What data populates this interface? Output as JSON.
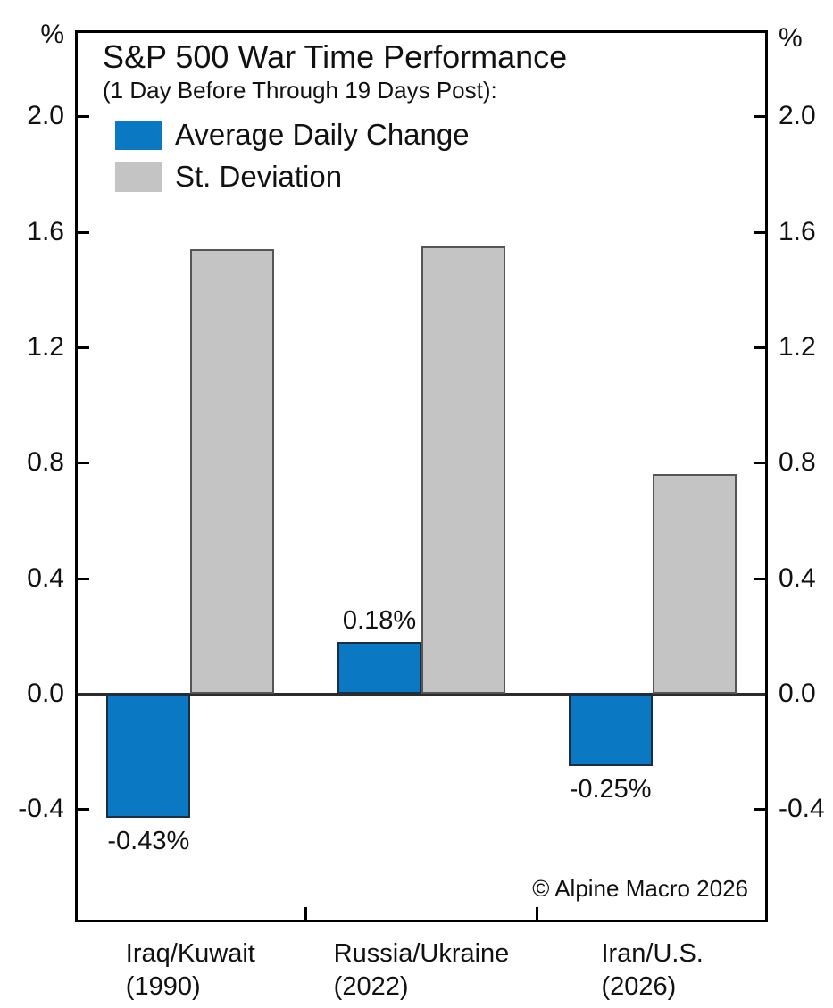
{
  "chart_data": {
    "type": "bar",
    "title": "S&P 500 War Time Performance",
    "subtitle": "(1 Day Before Through 19 Days Post):",
    "unit": "%",
    "categories": [
      "Iraq/Kuwait (1990)",
      "Russia/Ukraine (2022)",
      "Iran/U.S. (2026)"
    ],
    "category_lines": [
      [
        "Iraq/Kuwait",
        "(1990)"
      ],
      [
        "Russia/Ukraine",
        "(2022)"
      ],
      [
        "Iran/U.S.",
        "(2026)"
      ]
    ],
    "series": [
      {
        "name": "Average Daily Change",
        "color": "#0b78c4",
        "values": [
          -0.43,
          0.18,
          -0.25
        ],
        "value_labels": [
          "-0.43%",
          "0.18%",
          "-0.25%"
        ]
      },
      {
        "name": "St. Deviation",
        "color": "#c4c4c4",
        "values": [
          1.54,
          1.55,
          0.76
        ],
        "value_labels": [
          null,
          null,
          null
        ]
      }
    ],
    "yticks": [
      2.0,
      1.6,
      1.2,
      0.8,
      0.4,
      0.0,
      -0.4
    ],
    "ytick_labels": [
      "2.0",
      "1.6",
      "1.2",
      "0.8",
      "0.4",
      "0.0",
      "-0.4"
    ],
    "ylim": [
      -0.79,
      2.29
    ],
    "grid": false,
    "legend_position": "top-left inside plot",
    "unit_shown_both_sides": true,
    "annotations": [
      "© Alpine Macro 2026"
    ]
  }
}
